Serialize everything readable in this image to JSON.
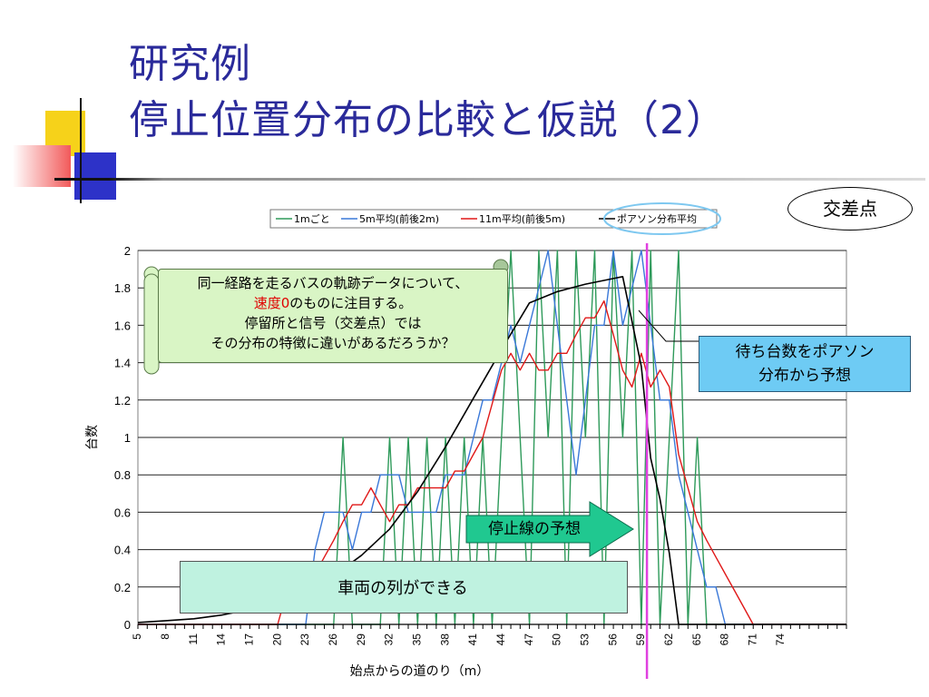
{
  "title": {
    "line1": "研究例",
    "line2": "停止位置分布の比較と仮説（2）"
  },
  "annotations": {
    "crossing_label": "交差点",
    "bubble_line1": "同一経路を走るバスの軌跡データについて、",
    "bubble_red": "速度0",
    "bubble_line2_rest": "のものに注目する。",
    "bubble_line3": "停留所と信号（交差点）では",
    "bubble_line4": "その分布の特徴に違いがあるだろうか？",
    "callout_line1": "待ち台数をポアソン",
    "callout_line2": "分布から予想",
    "stopline_label": "停止線の予想",
    "queue_label": "車両の列ができる"
  },
  "colors": {
    "title": "#2a2a9a",
    "series_1m": "#2e9a5a",
    "series_5m": "#3a78d8",
    "series_11m": "#e01818",
    "series_poisson": "#000000",
    "stopline": "#e040e0",
    "arrow": "#20c890"
  },
  "chart_data": {
    "type": "line",
    "xlabel": "始点からの道のり（m）",
    "ylabel": "台数",
    "x_ticks": [
      "5",
      "8",
      "11",
      "14",
      "17",
      "20",
      "23",
      "26",
      "29",
      "32",
      "35",
      "38",
      "41",
      "44",
      "47",
      "50",
      "53",
      "56",
      "59",
      "62",
      "65",
      "68",
      "71",
      "74"
    ],
    "ylim": [
      0,
      2
    ],
    "y_ticks": [
      "0",
      "0.2",
      "0.4",
      "0.6",
      "0.8",
      "1",
      "1.2",
      "1.4",
      "1.6",
      "1.8",
      "2"
    ],
    "xlim": [
      5,
      81
    ],
    "grid": true,
    "legend_position": "top",
    "stop_line_x": 59.6,
    "series": [
      {
        "name": "1mごと",
        "color_key": "series_1m",
        "points": [
          [
            5,
            0
          ],
          [
            23,
            0
          ],
          [
            24,
            0
          ],
          [
            25,
            0
          ],
          [
            26,
            0
          ],
          [
            27,
            1
          ],
          [
            28,
            0
          ],
          [
            29,
            0
          ],
          [
            30,
            0
          ],
          [
            31,
            0
          ],
          [
            32,
            1
          ],
          [
            33,
            0
          ],
          [
            34,
            1
          ],
          [
            35,
            0
          ],
          [
            36,
            1
          ],
          [
            37,
            0
          ],
          [
            38,
            1
          ],
          [
            39,
            0
          ],
          [
            40,
            1
          ],
          [
            41,
            0
          ],
          [
            42,
            1
          ],
          [
            43,
            0
          ],
          [
            44,
            1
          ],
          [
            45,
            2
          ],
          [
            46,
            1
          ],
          [
            47,
            0
          ],
          [
            48,
            2
          ],
          [
            49,
            1
          ],
          [
            50,
            2
          ],
          [
            51,
            0
          ],
          [
            52,
            2
          ],
          [
            53,
            1
          ],
          [
            54,
            2
          ],
          [
            55,
            0
          ],
          [
            56,
            2
          ],
          [
            57,
            1
          ],
          [
            58,
            2
          ],
          [
            59,
            0
          ],
          [
            60,
            2
          ],
          [
            61,
            0
          ],
          [
            62,
            1
          ],
          [
            63,
            2
          ],
          [
            64,
            0
          ],
          [
            65,
            1
          ],
          [
            66,
            0
          ],
          [
            67,
            0
          ],
          [
            81,
            0
          ]
        ]
      },
      {
        "name": "5m平均(前後2m)",
        "color_key": "series_5m",
        "points": [
          [
            5,
            0
          ],
          [
            23,
            0
          ],
          [
            24,
            0.4
          ],
          [
            25,
            0.6
          ],
          [
            26,
            0.6
          ],
          [
            27,
            0.6
          ],
          [
            28,
            0.4
          ],
          [
            29,
            0.6
          ],
          [
            30,
            0.6
          ],
          [
            31,
            0.8
          ],
          [
            32,
            0.8
          ],
          [
            33,
            0.8
          ],
          [
            34,
            0.6
          ],
          [
            35,
            0.6
          ],
          [
            36,
            0.6
          ],
          [
            37,
            0.6
          ],
          [
            38,
            0.8
          ],
          [
            39,
            0.8
          ],
          [
            40,
            0.8
          ],
          [
            41,
            1.0
          ],
          [
            42,
            1.2
          ],
          [
            43,
            1.2
          ],
          [
            44,
            1.4
          ],
          [
            45,
            1.6
          ],
          [
            46,
            1.4
          ],
          [
            47,
            1.6
          ],
          [
            48,
            1.8
          ],
          [
            49,
            2.0
          ],
          [
            50,
            1.6
          ],
          [
            51,
            1.2
          ],
          [
            52,
            0.8
          ],
          [
            53,
            1.2
          ],
          [
            54,
            1.6
          ],
          [
            55,
            1.6
          ],
          [
            56,
            2.0
          ],
          [
            57,
            1.6
          ],
          [
            58,
            1.8
          ],
          [
            59,
            2.0
          ],
          [
            60,
            1.6
          ],
          [
            61,
            1.2
          ],
          [
            62,
            1.2
          ],
          [
            63,
            0.8
          ],
          [
            64,
            0.6
          ],
          [
            65,
            0.4
          ],
          [
            66,
            0.2
          ],
          [
            67,
            0.2
          ],
          [
            68,
            0
          ],
          [
            81,
            0
          ]
        ]
      },
      {
        "name": "11m平均(前後5m)",
        "color_key": "series_11m",
        "points": [
          [
            5,
            0
          ],
          [
            20,
            0
          ],
          [
            21,
            0.18
          ],
          [
            22,
            0.27
          ],
          [
            23,
            0.27
          ],
          [
            24,
            0.27
          ],
          [
            25,
            0.36
          ],
          [
            26,
            0.45
          ],
          [
            27,
            0.55
          ],
          [
            28,
            0.64
          ],
          [
            29,
            0.64
          ],
          [
            30,
            0.73
          ],
          [
            31,
            0.64
          ],
          [
            32,
            0.55
          ],
          [
            33,
            0.64
          ],
          [
            34,
            0.64
          ],
          [
            35,
            0.73
          ],
          [
            36,
            0.73
          ],
          [
            37,
            0.73
          ],
          [
            38,
            0.73
          ],
          [
            39,
            0.82
          ],
          [
            40,
            0.82
          ],
          [
            41,
            0.91
          ],
          [
            42,
            1.0
          ],
          [
            43,
            1.18
          ],
          [
            44,
            1.36
          ],
          [
            45,
            1.45
          ],
          [
            46,
            1.36
          ],
          [
            47,
            1.45
          ],
          [
            48,
            1.36
          ],
          [
            49,
            1.36
          ],
          [
            50,
            1.45
          ],
          [
            51,
            1.45
          ],
          [
            52,
            1.55
          ],
          [
            53,
            1.64
          ],
          [
            54,
            1.64
          ],
          [
            55,
            1.73
          ],
          [
            56,
            1.55
          ],
          [
            57,
            1.36
          ],
          [
            58,
            1.27
          ],
          [
            59,
            1.45
          ],
          [
            60,
            1.27
          ],
          [
            61,
            1.36
          ],
          [
            62,
            1.27
          ],
          [
            63,
            0.91
          ],
          [
            64,
            0.73
          ],
          [
            65,
            0.55
          ],
          [
            66,
            0.45
          ],
          [
            67,
            0.36
          ],
          [
            68,
            0.27
          ],
          [
            69,
            0.18
          ],
          [
            70,
            0.09
          ],
          [
            71,
            0
          ],
          [
            81,
            0
          ]
        ]
      },
      {
        "name": "ポアソン分布平均",
        "color_key": "series_poisson",
        "points": [
          [
            5,
            0.01
          ],
          [
            8,
            0.02
          ],
          [
            11,
            0.03
          ],
          [
            14,
            0.05
          ],
          [
            17,
            0.08
          ],
          [
            20,
            0.11
          ],
          [
            23,
            0.18
          ],
          [
            26,
            0.26
          ],
          [
            29,
            0.37
          ],
          [
            32,
            0.51
          ],
          [
            35,
            0.71
          ],
          [
            38,
            0.95
          ],
          [
            41,
            1.21
          ],
          [
            44,
            1.47
          ],
          [
            47,
            1.72
          ],
          [
            50,
            1.78
          ],
          [
            53,
            1.82
          ],
          [
            56,
            1.85
          ],
          [
            57,
            1.86
          ],
          [
            59,
            1.38
          ],
          [
            60,
            0.89
          ],
          [
            61,
            0.67
          ],
          [
            62,
            0.38
          ],
          [
            63,
            0
          ],
          [
            81,
            0
          ]
        ]
      }
    ]
  }
}
